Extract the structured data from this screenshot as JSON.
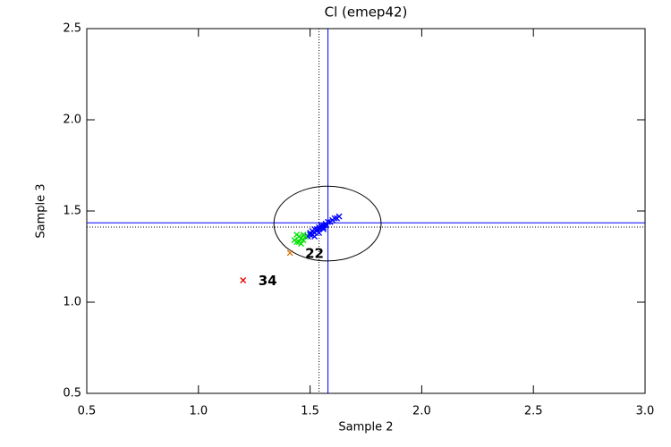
{
  "chart_data": {
    "type": "scatter",
    "title": "Cl (emep42)",
    "x_label": "Sample 2",
    "y_label": "Sample 3",
    "xlim": [
      0.5,
      3.0
    ],
    "ylim": [
      0.5,
      2.5
    ],
    "xticks": [
      0.5,
      {
        "value": 1,
        "label": "1.0"
      },
      1.5,
      {
        "value": 2,
        "label": "2.0"
      },
      2.5,
      {
        "value": 3,
        "label": "3.0"
      }
    ],
    "yticks": [
      0.5,
      {
        "value": 1,
        "label": "1.0"
      },
      1.5,
      {
        "value": 2,
        "label": "2.0"
      },
      2.5
    ],
    "series": [
      {
        "color": "#0000ff",
        "x": [
          1.49,
          1.5,
          1.5,
          1.51,
          1.51,
          1.52,
          1.52,
          1.53,
          1.53,
          1.54,
          1.54,
          1.55,
          1.55,
          1.56,
          1.56,
          1.57,
          1.57,
          1.58,
          1.59,
          1.6,
          1.61,
          1.62,
          1.63,
          1.52,
          1.54,
          1.56
        ],
        "values": [
          1.36,
          1.37,
          1.38,
          1.37,
          1.39,
          1.38,
          1.4,
          1.39,
          1.4,
          1.4,
          1.41,
          1.41,
          1.42,
          1.42,
          1.41,
          1.43,
          1.42,
          1.44,
          1.44,
          1.45,
          1.46,
          1.46,
          1.47,
          1.36,
          1.38,
          1.4
        ]
      },
      {
        "color": "#00e000",
        "x": [
          1.43,
          1.44,
          1.45,
          1.44,
          1.46,
          1.47,
          1.45,
          1.48,
          1.46,
          1.47
        ],
        "values": [
          1.34,
          1.37,
          1.36,
          1.33,
          1.35,
          1.34,
          1.33,
          1.36,
          1.32,
          1.37
        ]
      },
      {
        "color": "#e07000",
        "x": [
          1.41
        ],
        "values": [
          1.27
        ],
        "labels": [
          "22"
        ]
      },
      {
        "color": "#e00000",
        "x": [
          1.2
        ],
        "values": [
          1.12
        ],
        "labels": [
          "34"
        ]
      }
    ],
    "vlines": [
      {
        "value": 1.58,
        "color": "#0000ff",
        "style": "solid"
      },
      {
        "value": 1.54,
        "color": "#000000",
        "style": "dotted"
      }
    ],
    "hlines": [
      {
        "value": 1.435,
        "color": "#0000ff",
        "style": "solid"
      },
      {
        "value": 1.412,
        "color": "#000000",
        "style": "dotted"
      }
    ],
    "ellipse": {
      "cx": 1.578,
      "cy": 1.431,
      "rx": 0.24,
      "ry": 0.205,
      "color": "#000000"
    }
  }
}
